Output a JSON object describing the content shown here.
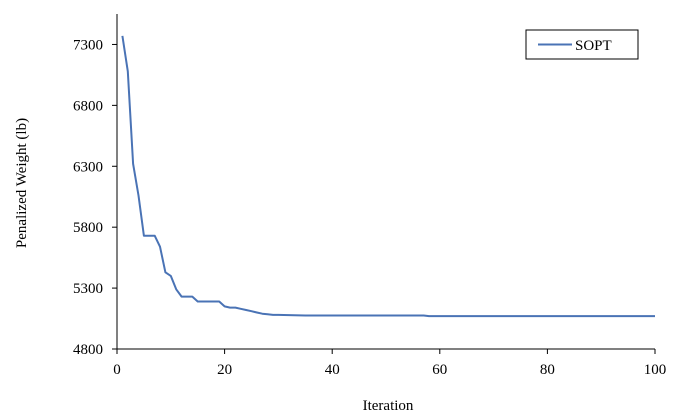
{
  "chart_data": {
    "type": "line",
    "title": "",
    "xlabel": "Iteration",
    "ylabel": "Penalized Weight (lb)",
    "xlim": [
      0,
      100
    ],
    "ylim": [
      4800,
      7550
    ],
    "x_ticks": [
      0,
      20,
      40,
      60,
      80,
      100
    ],
    "y_ticks": [
      4800,
      5300,
      5800,
      6300,
      6800,
      7300
    ],
    "x_tick_labels": [
      "0",
      "20",
      "40",
      "60",
      "80",
      "100"
    ],
    "y_tick_labels": [
      "4800",
      "5300",
      "5800",
      "6300",
      "6800",
      "7300"
    ],
    "grid": false,
    "legend_position": "top-right",
    "series": [
      {
        "name": "SOPT",
        "color": "#4a73b5",
        "x": [
          1,
          2,
          3,
          4,
          5,
          6,
          7,
          8,
          9,
          10,
          11,
          12,
          13,
          14,
          15,
          16,
          17,
          18,
          19,
          20,
          21,
          22,
          23,
          24,
          25,
          26,
          27,
          28,
          29,
          30,
          35,
          40,
          45,
          50,
          55,
          57,
          58,
          60,
          70,
          80,
          90,
          100
        ],
        "y": [
          7370,
          7080,
          6320,
          6060,
          5730,
          5730,
          5730,
          5640,
          5430,
          5400,
          5290,
          5230,
          5230,
          5230,
          5190,
          5190,
          5190,
          5190,
          5190,
          5150,
          5140,
          5140,
          5130,
          5120,
          5110,
          5100,
          5090,
          5085,
          5080,
          5080,
          5075,
          5075,
          5075,
          5075,
          5075,
          5075,
          5070,
          5070,
          5070,
          5070,
          5070,
          5070
        ]
      }
    ]
  }
}
